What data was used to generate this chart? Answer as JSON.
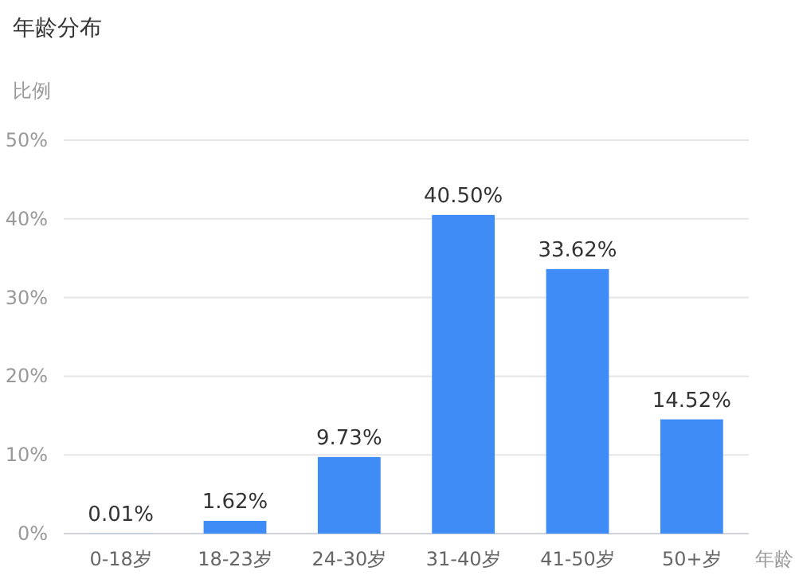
{
  "chart_data": {
    "type": "bar",
    "title": "年龄分布",
    "xlabel": "年龄",
    "ylabel": "比例",
    "categories": [
      "0-18岁",
      "18-23岁",
      "24-30岁",
      "31-40岁",
      "41-50岁",
      "50+岁"
    ],
    "values": [
      0.01,
      1.62,
      9.73,
      40.5,
      33.62,
      14.52
    ],
    "value_labels": [
      "0.01%",
      "1.62%",
      "9.73%",
      "40.50%",
      "33.62%",
      "14.52%"
    ],
    "color": "#3f8cf7",
    "ylim": [
      0,
      50
    ],
    "yticks": [
      {
        "value": 0,
        "label": "0%"
      },
      {
        "value": 10,
        "label": "10%"
      },
      {
        "value": 20,
        "label": "20%"
      },
      {
        "value": 30,
        "label": "30%"
      },
      {
        "value": 40,
        "label": "40%"
      },
      {
        "value": 50,
        "label": "50%"
      }
    ],
    "grid": "y"
  }
}
